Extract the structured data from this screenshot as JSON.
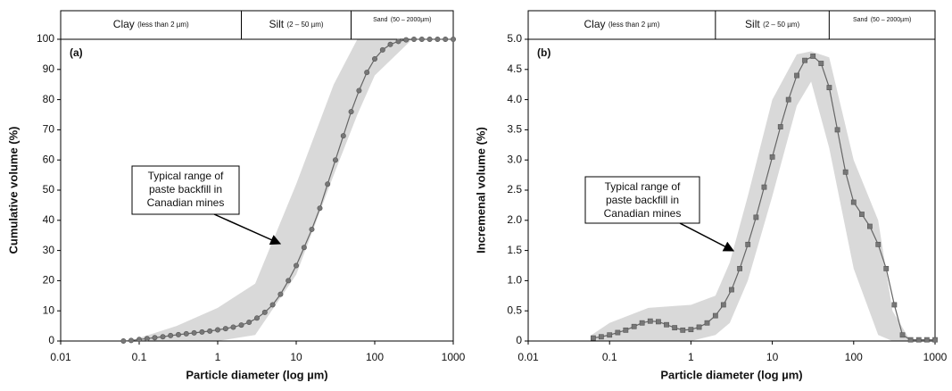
{
  "chart_data": [
    {
      "type": "line",
      "panel_label": "(a)",
      "x_label": "Particle diameter (log µm)",
      "y_label": "Cumulative volume (%)",
      "xscale": "log",
      "xlim": [
        0.01,
        1000
      ],
      "xticks": [
        0.01,
        0.1,
        1,
        10,
        100,
        1000
      ],
      "ylim": [
        0,
        100
      ],
      "yticks": [
        0,
        10,
        20,
        30,
        40,
        50,
        60,
        70,
        80,
        90,
        100
      ],
      "zones": [
        {
          "name": "Clay",
          "range": "(less than 2 µm)"
        },
        {
          "name": "Silt",
          "range": "(2 – 50 µm)"
        },
        {
          "name": "Sand",
          "range": "(50 – 2000µm)"
        }
      ],
      "zone_edges": [
        2,
        50
      ],
      "annotation": [
        "Typical range of",
        "paste backfill in",
        "Canadian mines"
      ],
      "band": {
        "color": "#d9d9d9",
        "x": [
          0.1,
          0.3,
          1,
          3,
          10,
          30,
          60,
          100,
          300,
          1000
        ],
        "upper": [
          1,
          5,
          11,
          19,
          52,
          85,
          100,
          100,
          100,
          100
        ],
        "lower": [
          0,
          0,
          0,
          2,
          22,
          55,
          75,
          88,
          100,
          100
        ]
      },
      "marker": "circle",
      "x": [
        0.063,
        0.079,
        0.1,
        0.126,
        0.158,
        0.2,
        0.251,
        0.316,
        0.398,
        0.501,
        0.631,
        0.794,
        1,
        1.26,
        1.58,
        2,
        2.51,
        3.16,
        3.98,
        5.01,
        6.31,
        7.94,
        10,
        12.6,
        15.8,
        20,
        25.1,
        31.6,
        39.8,
        50.1,
        63.1,
        79.4,
        100,
        126,
        158,
        200,
        251,
        316,
        398,
        501,
        631,
        794,
        1000
      ],
      "series": [
        {
          "color": "#666666",
          "values": [
            0,
            0.2,
            0.5,
            0.8,
            1.1,
            1.4,
            1.8,
            2.1,
            2.4,
            2.7,
            3.0,
            3.3,
            3.7,
            4.1,
            4.6,
            5.3,
            6.2,
            7.6,
            9.5,
            12,
            15.5,
            20,
            25,
            31,
            37,
            44,
            52,
            60,
            68,
            76,
            83,
            89,
            93.5,
            96.5,
            98.3,
            99.3,
            99.8,
            100,
            100,
            100,
            100,
            100,
            100
          ]
        }
      ]
    },
    {
      "type": "line",
      "panel_label": "(b)",
      "x_label": "Particle diameter (log µm)",
      "y_label": "Incremenal volume (%)",
      "xscale": "log",
      "xlim": [
        0.01,
        1000
      ],
      "xticks": [
        0.01,
        0.1,
        1,
        10,
        100,
        1000
      ],
      "ylim": [
        0,
        5
      ],
      "yticks": [
        {
          "value": 0,
          "label": "0"
        },
        0.5,
        {
          "value": 1,
          "label": "1.0"
        },
        1.5,
        {
          "value": 2,
          "label": "2.0"
        },
        2.5,
        {
          "value": 3,
          "label": "3.0"
        },
        3.5,
        {
          "value": 4,
          "label": "4.0"
        },
        4.5,
        {
          "value": 5,
          "label": "5.0"
        }
      ],
      "zones": [
        {
          "name": "Clay",
          "range": "(less than 2 µm)"
        },
        {
          "name": "Silt",
          "range": "(2 – 50 µm)"
        },
        {
          "name": "Sand",
          "range": "(50 – 2000µm)"
        }
      ],
      "zone_edges": [
        2,
        50
      ],
      "annotation": [
        "Typical range of",
        "paste backfill in",
        "Canadian mines"
      ],
      "band": {
        "color": "#d9d9d9",
        "x": [
          0.06,
          0.1,
          0.3,
          1,
          2,
          3,
          5,
          10,
          20,
          30,
          50,
          100,
          200,
          300,
          500
        ],
        "upper": [
          0.1,
          0.3,
          0.55,
          0.6,
          0.75,
          1.3,
          2.4,
          4.0,
          4.75,
          4.8,
          4.7,
          3.0,
          2.0,
          0.5,
          0
        ],
        "lower": [
          0,
          0,
          0,
          0,
          0.1,
          0.3,
          1.0,
          2.4,
          3.9,
          4.3,
          3.2,
          1.2,
          0.1,
          0,
          0
        ]
      },
      "marker": "square",
      "x": [
        0.063,
        0.079,
        0.1,
        0.126,
        0.158,
        0.2,
        0.251,
        0.316,
        0.398,
        0.501,
        0.631,
        0.794,
        1,
        1.26,
        1.58,
        2,
        2.51,
        3.16,
        3.98,
        5.01,
        6.31,
        7.94,
        10,
        12.6,
        15.8,
        20,
        25.1,
        31.6,
        39.8,
        50.1,
        63.1,
        79.4,
        100,
        126,
        158,
        200,
        251,
        316,
        398,
        501,
        631,
        794,
        1000
      ],
      "series": [
        {
          "color": "#666666",
          "values": [
            0.05,
            0.07,
            0.1,
            0.14,
            0.18,
            0.24,
            0.3,
            0.33,
            0.32,
            0.27,
            0.22,
            0.18,
            0.19,
            0.23,
            0.3,
            0.42,
            0.6,
            0.85,
            1.2,
            1.6,
            2.05,
            2.55,
            3.05,
            3.55,
            4.0,
            4.4,
            4.65,
            4.72,
            4.6,
            4.2,
            3.5,
            2.8,
            2.3,
            2.1,
            1.9,
            1.6,
            1.2,
            0.6,
            0.1,
            0.02,
            0.02,
            0.02,
            0.02
          ]
        }
      ]
    }
  ]
}
